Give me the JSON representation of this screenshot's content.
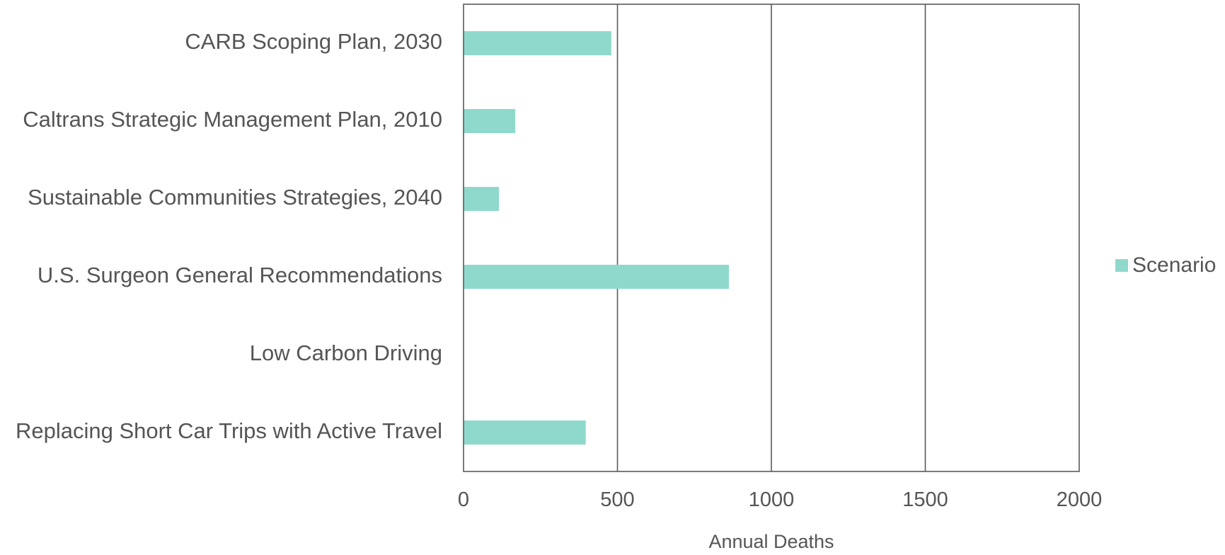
{
  "chart_data": {
    "type": "bar",
    "orientation": "horizontal",
    "categories": [
      "CARB Scoping Plan, 2030",
      "Caltrans Strategic Management Plan, 2010",
      "Sustainable Communities Strategies, 2040",
      "U.S. Surgeon General Recommendations",
      "Low Carbon Driving",
      "Replacing Short Car Trips with Active Travel"
    ],
    "series": [
      {
        "name": "Scenario",
        "values": [
          480,
          168,
          115,
          862,
          0,
          397
        ]
      }
    ],
    "xlabel": "Annual Deaths",
    "xlim": [
      0,
      2000
    ],
    "xticks": [
      "0",
      "500",
      "1000",
      "1500",
      "2000"
    ],
    "grid": true,
    "legend_position": "right",
    "colors": {
      "bar": "#8ed9cc",
      "text": "#555555",
      "grid": "#5a5a5a"
    }
  }
}
